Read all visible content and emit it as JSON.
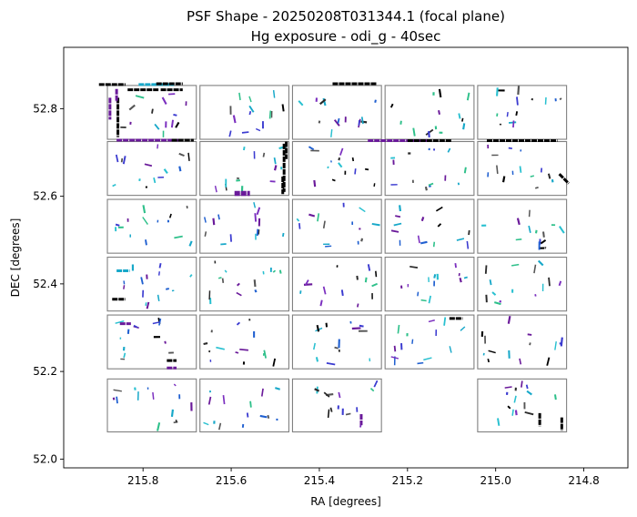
{
  "chart_data": {
    "type": "scatter",
    "title": "PSF Shape - 20250208T031344.1 (focal plane)",
    "subtitle": "Hg exposure - odi_g - 40sec",
    "xlabel": "RA [degrees]",
    "ylabel": "DEC [degrees]",
    "xlim": [
      215.98,
      214.7
    ],
    "ylim": [
      51.98,
      52.94
    ],
    "x_inverted": true,
    "xticks": [
      215.8,
      215.6,
      215.4,
      215.2,
      215.0,
      214.8
    ],
    "xtick_labels": [
      "215.8",
      "215.6",
      "215.4",
      "215.2",
      "215.0",
      "214.8"
    ],
    "yticks": [
      52.0,
      52.2,
      52.4,
      52.6,
      52.8
    ],
    "ytick_labels": [
      "52.0",
      "52.2",
      "52.4",
      "52.6",
      "52.8"
    ],
    "grid": false,
    "colors": {
      "frame": "#000000",
      "ota_outline": "#808080",
      "whisker_palette": [
        "#000000",
        "#2a2a2a",
        "#555555",
        "#17a8c9",
        "#28c0d0",
        "#1f5fd0",
        "#3a3ad0",
        "#6a1a9a",
        "#7b2fbf",
        "#2ec08a"
      ]
    },
    "ota_grid": {
      "columns_ra": [
        [
          215.885,
          215.675
        ],
        [
          215.675,
          215.465
        ],
        [
          215.465,
          215.255
        ],
        [
          215.255,
          215.045
        ],
        [
          215.045,
          214.835
        ]
      ],
      "rows_dec": [
        [
          52.728,
          52.855
        ],
        [
          52.6,
          52.727
        ],
        [
          52.468,
          52.595
        ],
        [
          52.336,
          52.463
        ],
        [
          52.204,
          52.331
        ],
        [
          52.06,
          52.185
        ]
      ],
      "missing_cells": [
        [
          5,
          3
        ]
      ]
    },
    "clusters": [
      {
        "ra": 215.87,
        "dec": 52.855,
        "angle": 0,
        "len": 0.06,
        "color": "#000000"
      },
      {
        "ra": 215.77,
        "dec": 52.855,
        "angle": 0,
        "len": 0.08,
        "color": "#17a8c9"
      },
      {
        "ra": 215.74,
        "dec": 52.857,
        "angle": 0,
        "len": 0.06,
        "color": "#000000"
      },
      {
        "ra": 215.8,
        "dec": 52.843,
        "angle": 0,
        "len": 0.07,
        "color": "#000000"
      },
      {
        "ra": 215.735,
        "dec": 52.843,
        "angle": 0,
        "len": 0.05,
        "color": "#000000"
      },
      {
        "ra": 215.875,
        "dec": 52.8,
        "angle": 90,
        "len": 0.05,
        "color": "#6a1a9a"
      },
      {
        "ra": 215.857,
        "dec": 52.78,
        "angle": 90,
        "len": 0.09,
        "color": "#000000"
      },
      {
        "ra": 215.86,
        "dec": 52.83,
        "angle": 90,
        "len": 0.03,
        "color": "#6a1a9a"
      },
      {
        "ra": 215.48,
        "dec": 52.665,
        "angle": 90,
        "len": 0.11,
        "color": "#000000"
      },
      {
        "ra": 215.475,
        "dec": 52.705,
        "angle": 90,
        "len": 0.04,
        "color": "#000000"
      },
      {
        "ra": 215.483,
        "dec": 52.625,
        "angle": 90,
        "len": 0.04,
        "color": "#000000"
      },
      {
        "ra": 215.575,
        "dec": 52.609,
        "angle": 0,
        "len": 0.035,
        "color": "#6a1a9a"
      },
      {
        "ra": 215.575,
        "dec": 52.604,
        "angle": 0,
        "len": 0.035,
        "color": "#6a1a9a"
      },
      {
        "ra": 215.32,
        "dec": 52.857,
        "angle": 0,
        "len": 0.1,
        "color": "#000000"
      },
      {
        "ra": 215.22,
        "dec": 52.727,
        "angle": 0,
        "len": 0.14,
        "color": "#6a1a9a"
      },
      {
        "ra": 215.15,
        "dec": 52.727,
        "angle": 0,
        "len": 0.1,
        "color": "#000000"
      },
      {
        "ra": 214.94,
        "dec": 52.727,
        "angle": 0,
        "len": 0.16,
        "color": "#000000"
      },
      {
        "ra": 215.79,
        "dec": 52.728,
        "angle": 0,
        "len": 0.14,
        "color": "#6a1a9a"
      },
      {
        "ra": 215.71,
        "dec": 52.728,
        "angle": 0,
        "len": 0.05,
        "color": "#000000"
      },
      {
        "ra": 215.855,
        "dec": 52.365,
        "angle": 0,
        "len": 0.03,
        "color": "#000000"
      },
      {
        "ra": 215.84,
        "dec": 52.309,
        "angle": 0,
        "len": 0.025,
        "color": "#6a1a9a"
      },
      {
        "ra": 215.735,
        "dec": 52.208,
        "angle": 0,
        "len": 0.022,
        "color": "#6a1a9a"
      },
      {
        "ra": 215.735,
        "dec": 52.225,
        "angle": 0,
        "len": 0.022,
        "color": "#000000"
      },
      {
        "ra": 215.845,
        "dec": 52.43,
        "angle": 0,
        "len": 0.03,
        "color": "#17a8c9"
      },
      {
        "ra": 215.305,
        "dec": 52.09,
        "angle": 90,
        "len": 0.025,
        "color": "#6a1a9a"
      },
      {
        "ra": 215.09,
        "dec": 52.321,
        "angle": 0,
        "len": 0.03,
        "color": "#000000"
      },
      {
        "ra": 214.845,
        "dec": 52.64,
        "angle": 45,
        "len": 0.03,
        "color": "#000000"
      },
      {
        "ra": 214.9,
        "dec": 52.09,
        "angle": 90,
        "len": 0.03,
        "color": "#000000"
      },
      {
        "ra": 214.85,
        "dec": 52.08,
        "angle": 90,
        "len": 0.03,
        "color": "#000000"
      }
    ],
    "whisker_seed": 20250208,
    "whiskers_per_ota": 14
  }
}
